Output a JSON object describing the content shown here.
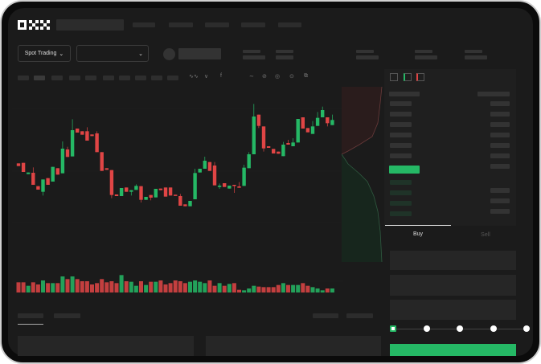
{
  "header": {
    "logo": "OKX",
    "nav_count": 5
  },
  "market_bar": {
    "mode_label": "Spot Trading",
    "pair_value": ""
  },
  "orderbook": {
    "view_icons": [
      "orderbook-both-icon",
      "orderbook-bids-icon",
      "orderbook-asks-icon"
    ]
  },
  "trade_form": {
    "tabs": [
      {
        "label": "Buy",
        "active": true
      },
      {
        "label": "Sell",
        "active": false
      }
    ],
    "slider_percent": 0,
    "slider_stops": [
      0,
      25,
      50,
      75,
      100
    ]
  },
  "colors": {
    "up": "#25b865",
    "down": "#e04545",
    "background": "#1b1b1b",
    "panel": "#1f1f1f"
  },
  "chart_data": {
    "type": "candlestick",
    "candles": [
      [
        250,
        250,
        240,
        240
      ],
      [
        252,
        252,
        218,
        218
      ],
      [
        210,
        216,
        210,
        216
      ],
      [
        215,
        235,
        170,
        170
      ],
      [
        165,
        165,
        152,
        152
      ],
      [
        144,
        190,
        130,
        190
      ],
      [
        195,
        195,
        170,
        170
      ],
      [
        182,
        237,
        182,
        237
      ],
      [
        232,
        232,
        208,
        208
      ],
      [
        213,
        332,
        213,
        305
      ],
      [
        302,
        312,
        274,
        274
      ],
      [
        276,
        415,
        276,
        374
      ],
      [
        380,
        380,
        365,
        365
      ],
      [
        370,
        370,
        357,
        357
      ],
      [
        370,
        385,
        335,
        335
      ],
      [
        358,
        358,
        352,
        352
      ],
      [
        362,
        370,
        292,
        292
      ],
      [
        292,
        292,
        222,
        222
      ],
      [
        232,
        232,
        226,
        226
      ],
      [
        225,
        225,
        120,
        132
      ],
      [
        134,
        134,
        128,
        128
      ],
      [
        128,
        158,
        128,
        158
      ],
      [
        160,
        160,
        144,
        144
      ],
      [
        144,
        150,
        130,
        150
      ],
      [
        151,
        172,
        151,
        166
      ],
      [
        165,
        165,
        104,
        114
      ],
      [
        114,
        125,
        114,
        125
      ],
      [
        132,
        132,
        112,
        122
      ],
      [
        123,
        155,
        123,
        155
      ],
      [
        156,
        156,
        150,
        150
      ],
      [
        160,
        160,
        126,
        126
      ],
      [
        160,
        160,
        130,
        130
      ],
      [
        133,
        133,
        130,
        130
      ],
      [
        128,
        136,
        92,
        92
      ],
      [
        97,
        97,
        90,
        90
      ],
      [
        90,
        110,
        90,
        110
      ],
      [
        116,
        230,
        116,
        214
      ],
      [
        216,
        230,
        216,
        230
      ],
      [
        230,
        275,
        230,
        260
      ],
      [
        255,
        255,
        222,
        222
      ],
      [
        242,
        255,
        168,
        168
      ],
      [
        162,
        175,
        155,
        167
      ],
      [
        176,
        176,
        162,
        162
      ],
      [
        156,
        167,
        156,
        167
      ],
      [
        170,
        170,
        140,
        168
      ],
      [
        164,
        180,
        159,
        159
      ],
      [
        166,
        245,
        166,
        234
      ],
      [
        232,
        292,
        232,
        284
      ],
      [
        284,
        472,
        284,
        425
      ],
      [
        432,
        432,
        382,
        390
      ],
      [
        388,
        388,
        294,
        306
      ],
      [
        314,
        314,
        308,
        308
      ],
      [
        304,
        304,
        287,
        287
      ],
      [
        294,
        294,
        286,
        286
      ],
      [
        277,
        330,
        277,
        320
      ],
      [
        326,
        338,
        320,
        320
      ],
      [
        314,
        344,
        314,
        328
      ],
      [
        328,
        416,
        328,
        416
      ],
      [
        422,
        422,
        380,
        380
      ],
      [
        382,
        382,
        366,
        366
      ],
      [
        360,
        408,
        360,
        388
      ],
      [
        390,
        442,
        390,
        420
      ],
      [
        422,
        462,
        422,
        449
      ],
      [
        422,
        422,
        388,
        400
      ],
      [
        393,
        432,
        393,
        412
      ]
    ],
    "volumes": [
      38,
      38,
      25,
      38,
      30,
      45,
      35,
      35,
      35,
      60,
      50,
      60,
      50,
      42,
      42,
      30,
      35,
      50,
      38,
      42,
      35,
      65,
      42,
      40,
      25,
      42,
      28,
      40,
      40,
      45,
      30,
      35,
      45,
      42,
      35,
      40,
      45,
      40,
      35,
      45,
      25,
      35,
      25,
      32,
      35,
      10,
      8,
      15,
      25,
      22,
      20,
      20,
      20,
      28,
      35,
      28,
      28,
      28,
      35,
      25,
      20,
      15,
      8,
      15,
      15
    ]
  }
}
